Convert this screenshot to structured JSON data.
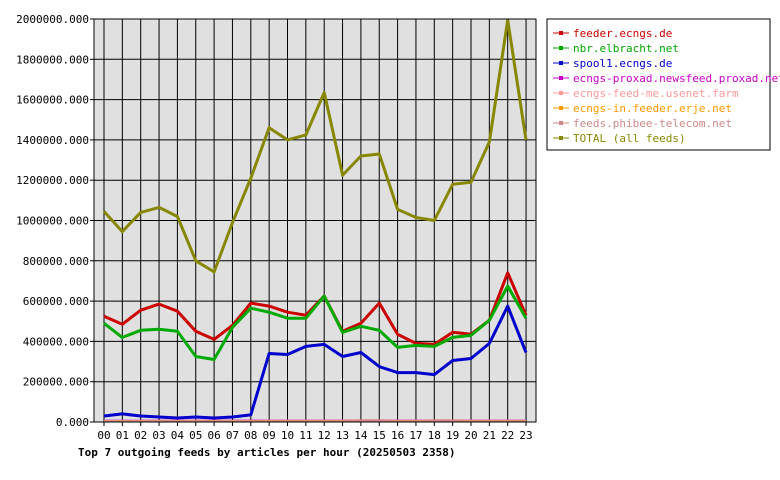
{
  "chart_data": {
    "type": "line",
    "title": "Top 7 outgoing feeds by articles per hour (20250503 2358)",
    "xlabel": "",
    "ylabel": "",
    "ylim": [
      0,
      2000000
    ],
    "grid": true,
    "legend_position": "right",
    "categories": [
      "00",
      "01",
      "02",
      "03",
      "04",
      "05",
      "06",
      "07",
      "08",
      "09",
      "10",
      "11",
      "12",
      "13",
      "14",
      "15",
      "16",
      "17",
      "18",
      "19",
      "20",
      "21",
      "22",
      "23"
    ],
    "y_ticks": [
      "0.000",
      "200000.000",
      "400000.000",
      "600000.000",
      "800000.000",
      "1000000.000",
      "1200000.000",
      "1400000.000",
      "1600000.000",
      "1800000.000",
      "2000000.000"
    ],
    "series": [
      {
        "name": "feeder.ecngs.de",
        "color": "#cc0000",
        "values": [
          525000,
          485000,
          555000,
          585000,
          550000,
          450000,
          410000,
          480000,
          590000,
          575000,
          545000,
          530000,
          625000,
          450000,
          490000,
          590000,
          435000,
          390000,
          385000,
          445000,
          435000,
          505000,
          740000,
          530000
        ]
      },
      {
        "name": "nbr.elbracht.net",
        "color": "#00aa00",
        "values": [
          490000,
          420000,
          455000,
          460000,
          450000,
          325000,
          310000,
          470000,
          565000,
          545000,
          515000,
          515000,
          625000,
          445000,
          475000,
          455000,
          370000,
          380000,
          375000,
          420000,
          430000,
          505000,
          675000,
          515000
        ]
      },
      {
        "name": "spool1.ecngs.de",
        "color": "#0000cc",
        "values": [
          30000,
          40000,
          30000,
          25000,
          20000,
          25000,
          20000,
          25000,
          35000,
          340000,
          335000,
          375000,
          385000,
          325000,
          345000,
          275000,
          245000,
          245000,
          235000,
          305000,
          315000,
          390000,
          575000,
          345000
        ]
      },
      {
        "name": "ecngs-proxad.newsfeed.proxad.net",
        "color": "#cc00cc",
        "values": [
          6000,
          6000,
          6000,
          6000,
          6000,
          6000,
          6000,
          6000,
          7000,
          7000,
          7000,
          7000,
          7000,
          7000,
          8000,
          8000,
          7000,
          7000,
          8000,
          8000,
          7000,
          7000,
          7000,
          7000
        ]
      },
      {
        "name": "ecngs-feed-me.usenet.farm",
        "color": "#ff9999",
        "values": [
          5000,
          5000,
          5000,
          5000,
          5000,
          5000,
          5000,
          5000,
          5000,
          6000,
          6000,
          6000,
          6000,
          6000,
          7000,
          7000,
          6000,
          6000,
          7000,
          7000,
          6000,
          6000,
          6000,
          6000
        ]
      },
      {
        "name": "ecngs-in.feeder.erje.net",
        "color": "#ff9900",
        "values": [
          4000,
          4000,
          4000,
          4000,
          4000,
          4000,
          4000,
          4000,
          4000,
          5000,
          5000,
          5000,
          5000,
          5000,
          6000,
          6000,
          5000,
          5000,
          6000,
          6000,
          5000,
          5000,
          5000,
          5000
        ]
      },
      {
        "name": "feeds.phibee-telecom.net",
        "color": "#cc8888",
        "values": [
          3000,
          3000,
          3000,
          3000,
          3000,
          3000,
          3000,
          3000,
          3000,
          4000,
          4000,
          4000,
          4000,
          4000,
          5000,
          5000,
          4000,
          4000,
          5000,
          5000,
          4000,
          4000,
          4000,
          4000
        ]
      },
      {
        "name": "TOTAL (all feeds)",
        "color": "#888800",
        "values": [
          1045000,
          945000,
          1040000,
          1065000,
          1020000,
          800000,
          745000,
          990000,
          1210000,
          1460000,
          1400000,
          1425000,
          1635000,
          1225000,
          1320000,
          1330000,
          1055000,
          1015000,
          1000000,
          1180000,
          1190000,
          1390000,
          1995000,
          1400000
        ]
      }
    ]
  }
}
